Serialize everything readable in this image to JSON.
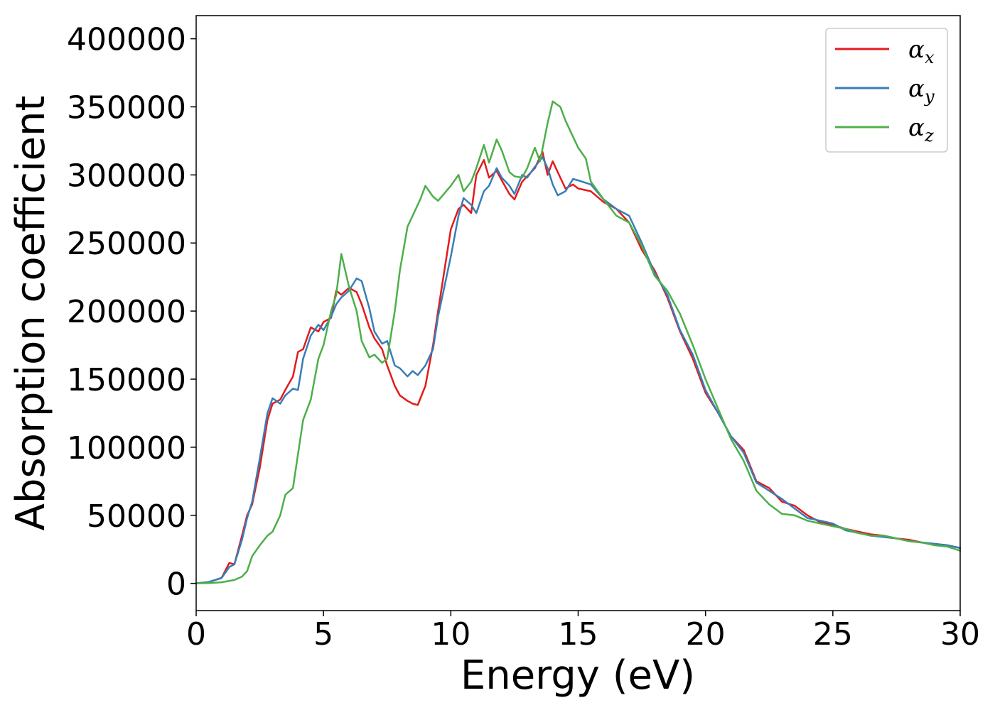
{
  "chart_data": {
    "type": "line",
    "title": "",
    "xlabel": "Energy (eV)",
    "ylabel": "Absorption coefficient",
    "xlim": [
      0,
      30
    ],
    "ylim": [
      -20000,
      417000
    ],
    "xticks": [
      0,
      5,
      10,
      15,
      20,
      25,
      30
    ],
    "xtick_labels": [
      "0",
      "5",
      "10",
      "15",
      "20",
      "25",
      "30"
    ],
    "yticks": [
      0,
      50000,
      100000,
      150000,
      200000,
      250000,
      300000,
      350000,
      400000
    ],
    "ytick_labels": [
      "0",
      "50000",
      "100000",
      "150000",
      "200000",
      "250000",
      "300000",
      "350000",
      "400000"
    ],
    "grid": false,
    "legend_position": "top-right",
    "series": [
      {
        "name": "αx",
        "symbol": "α",
        "subscript": "x",
        "color": "#e41a1c",
        "x": [
          0,
          0.5,
          1.0,
          1.3,
          1.5,
          1.8,
          2.0,
          2.2,
          2.5,
          2.8,
          3.0,
          3.3,
          3.5,
          3.8,
          4.0,
          4.2,
          4.5,
          4.8,
          5.0,
          5.3,
          5.5,
          5.7,
          6.0,
          6.3,
          6.5,
          6.8,
          7.0,
          7.3,
          7.5,
          7.8,
          8.0,
          8.3,
          8.5,
          8.7,
          9.0,
          9.3,
          9.5,
          10.0,
          10.3,
          10.5,
          10.8,
          11.0,
          11.3,
          11.5,
          11.8,
          12.0,
          12.3,
          12.5,
          12.8,
          13.0,
          13.3,
          13.6,
          13.8,
          14.0,
          14.2,
          14.5,
          14.8,
          15.0,
          15.5,
          16.0,
          16.5,
          17.0,
          17.5,
          18.0,
          18.5,
          19.0,
          19.5,
          20.0,
          20.5,
          21.0,
          21.5,
          22.0,
          22.5,
          23.0,
          23.5,
          24.0,
          24.5,
          25.0,
          25.5,
          26.0,
          26.5,
          27.0,
          27.5,
          28.0,
          28.5,
          29.0,
          29.5,
          30.0
        ],
        "values": [
          0,
          1000,
          4000,
          15000,
          14000,
          35000,
          50000,
          58000,
          85000,
          120000,
          132000,
          135000,
          142000,
          152000,
          170000,
          172000,
          188000,
          185000,
          192000,
          195000,
          215000,
          212000,
          217000,
          214000,
          205000,
          188000,
          180000,
          172000,
          160000,
          145000,
          138000,
          134000,
          132000,
          131000,
          145000,
          175000,
          200000,
          260000,
          275000,
          278000,
          272000,
          300000,
          311000,
          298000,
          303000,
          296000,
          286000,
          282000,
          295000,
          299000,
          305000,
          317000,
          300000,
          310000,
          302000,
          290000,
          293000,
          290000,
          288000,
          280000,
          275000,
          265000,
          245000,
          230000,
          210000,
          185000,
          165000,
          140000,
          125000,
          108000,
          98000,
          75000,
          70000,
          60000,
          57000,
          50000,
          45000,
          43000,
          40000,
          38000,
          36000,
          35000,
          33000,
          32000,
          30000,
          29000,
          28000,
          26000
        ]
      },
      {
        "name": "αy",
        "symbol": "α",
        "subscript": "y",
        "color": "#377eb8",
        "x": [
          0,
          0.5,
          1.0,
          1.3,
          1.5,
          1.8,
          2.0,
          2.2,
          2.5,
          2.8,
          3.0,
          3.3,
          3.5,
          3.8,
          4.0,
          4.2,
          4.5,
          4.8,
          5.0,
          5.3,
          5.5,
          5.7,
          6.0,
          6.3,
          6.5,
          6.8,
          7.0,
          7.3,
          7.5,
          7.8,
          8.0,
          8.3,
          8.5,
          8.7,
          9.0,
          9.3,
          9.5,
          10.0,
          10.3,
          10.5,
          10.8,
          11.0,
          11.3,
          11.5,
          11.8,
          12.0,
          12.3,
          12.5,
          12.8,
          13.0,
          13.3,
          13.6,
          13.8,
          14.0,
          14.2,
          14.5,
          14.8,
          15.0,
          15.5,
          16.0,
          16.5,
          17.0,
          17.5,
          18.0,
          18.5,
          19.0,
          19.5,
          20.0,
          20.5,
          21.0,
          21.5,
          22.0,
          22.5,
          23.0,
          23.5,
          24.0,
          24.5,
          25.0,
          25.5,
          26.0,
          26.5,
          27.0,
          27.5,
          28.0,
          28.5,
          29.0,
          29.5,
          30.0
        ],
        "values": [
          0,
          1000,
          4000,
          12000,
          14000,
          32000,
          48000,
          60000,
          92000,
          125000,
          136000,
          132000,
          138000,
          143000,
          142000,
          165000,
          182000,
          190000,
          186000,
          196000,
          205000,
          210000,
          215000,
          224000,
          222000,
          202000,
          185000,
          176000,
          178000,
          160000,
          158000,
          152000,
          156000,
          153000,
          160000,
          172000,
          196000,
          240000,
          270000,
          283000,
          278000,
          272000,
          288000,
          292000,
          305000,
          298000,
          292000,
          286000,
          300000,
          298000,
          306000,
          313000,
          305000,
          293000,
          285000,
          288000,
          297000,
          296000,
          293000,
          282000,
          275000,
          270000,
          250000,
          228000,
          212000,
          186000,
          168000,
          142000,
          125000,
          108000,
          96000,
          74000,
          68000,
          62000,
          55000,
          48000,
          46000,
          44000,
          39000,
          37000,
          35000,
          34000,
          33000,
          31000,
          30000,
          29000,
          28000,
          26000
        ]
      },
      {
        "name": "αz",
        "symbol": "α",
        "subscript": "z",
        "color": "#4daf4a",
        "x": [
          0,
          0.5,
          1.0,
          1.5,
          1.8,
          2.0,
          2.2,
          2.5,
          2.8,
          3.0,
          3.3,
          3.5,
          3.8,
          4.0,
          4.2,
          4.5,
          4.8,
          5.0,
          5.3,
          5.5,
          5.7,
          6.0,
          6.3,
          6.5,
          6.8,
          7.0,
          7.3,
          7.5,
          7.8,
          8.0,
          8.3,
          8.5,
          8.8,
          9.0,
          9.3,
          9.5,
          10.0,
          10.3,
          10.5,
          10.8,
          11.0,
          11.3,
          11.5,
          11.8,
          12.0,
          12.3,
          12.5,
          12.8,
          13.0,
          13.3,
          13.5,
          13.8,
          14.0,
          14.3,
          14.5,
          14.8,
          15.0,
          15.3,
          15.5,
          16.0,
          16.5,
          17.0,
          17.5,
          18.0,
          18.5,
          19.0,
          19.5,
          20.0,
          20.5,
          21.0,
          21.5,
          22.0,
          22.5,
          23.0,
          23.5,
          24.0,
          24.5,
          25.0,
          25.5,
          26.0,
          26.5,
          27.0,
          27.5,
          28.0,
          28.5,
          29.0,
          29.5,
          30.0
        ],
        "values": [
          0,
          200,
          800,
          2500,
          5000,
          9000,
          20000,
          28000,
          35000,
          38000,
          50000,
          65000,
          70000,
          95000,
          120000,
          135000,
          165000,
          175000,
          200000,
          212000,
          242000,
          218000,
          200000,
          178000,
          166000,
          168000,
          162000,
          165000,
          200000,
          230000,
          262000,
          270000,
          282000,
          292000,
          284000,
          281000,
          292000,
          300000,
          288000,
          295000,
          305000,
          322000,
          309000,
          326000,
          318000,
          302000,
          299000,
          298000,
          305000,
          320000,
          310000,
          338000,
          354000,
          350000,
          340000,
          328000,
          320000,
          312000,
          295000,
          282000,
          270000,
          265000,
          248000,
          226000,
          215000,
          198000,
          175000,
          150000,
          128000,
          106000,
          90000,
          68000,
          58000,
          51000,
          50000,
          46000,
          44000,
          42000,
          40000,
          37000,
          35000,
          35000,
          33000,
          31000,
          30000,
          28000,
          27000,
          24000
        ]
      }
    ]
  }
}
